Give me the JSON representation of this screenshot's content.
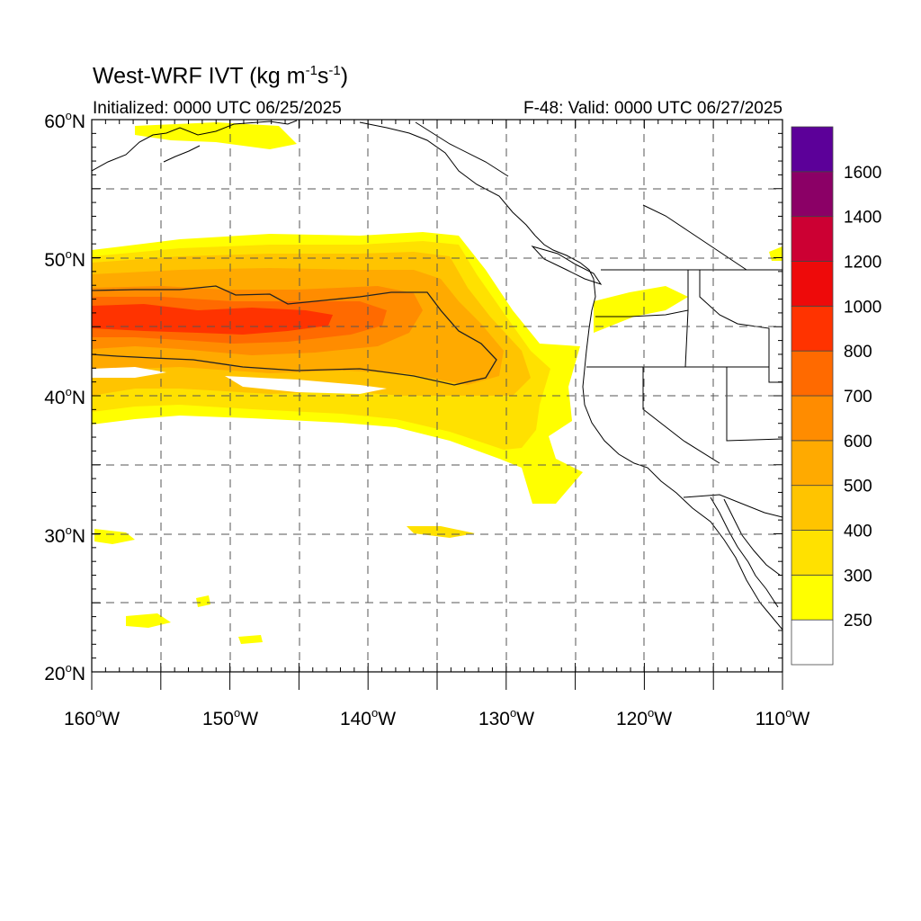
{
  "header": {
    "title_main": "West-WRF IVT (kg m",
    "title_exp1": "-1",
    "title_mid": "s",
    "title_exp2": "-1",
    "title_end": ")",
    "initialized": "Initialized: 0000 UTC 06/25/2025",
    "valid": "F-48: Valid: 0000 UTC 06/27/2025"
  },
  "axes": {
    "lat_labels": [
      "60",
      "50",
      "40",
      "30",
      "20"
    ],
    "lat_suffix": "N",
    "lon_labels": [
      "160",
      "150",
      "140",
      "130",
      "120",
      "110"
    ],
    "lon_suffix": "W",
    "degree_symbol": "o"
  },
  "map_extent": {
    "lon_range": [
      -160,
      -110
    ],
    "lat_range": [
      20,
      60
    ]
  },
  "colorbar": {
    "labels": [
      "250",
      "300",
      "400",
      "500",
      "600",
      "700",
      "800",
      "1000",
      "1200",
      "1400",
      "1600"
    ],
    "colors": [
      "#ffffff",
      "#ffff00",
      "#ffe100",
      "#ffc400",
      "#ffaa00",
      "#ff8c00",
      "#ff6a00",
      "#ff3300",
      "#ee0a0a",
      "#cc0033",
      "#8b0066",
      "#5c0099"
    ]
  },
  "chart_data": {
    "type": "heatmap",
    "title": "West-WRF IVT (kg m-1s-1)",
    "variable": "Integrated Vapor Transport",
    "levels": [
      250,
      300,
      400,
      500,
      600,
      700,
      800,
      1000,
      1200,
      1400,
      1600
    ],
    "features": [
      {
        "name": "atmospheric river core",
        "lon_range": [
          -160,
          -131
        ],
        "lat_range": [
          41.5,
          47.5
        ],
        "peak_ivt": 800
      },
      {
        "name": "moisture plume",
        "lon_range": [
          -160,
          -124
        ],
        "lat_range": [
          32,
          52
        ],
        "min_ivt": 250
      }
    ]
  }
}
